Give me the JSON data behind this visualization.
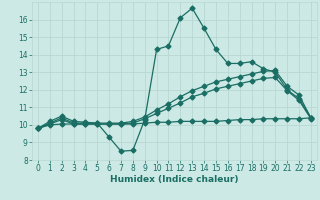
{
  "xlabel": "Humidex (Indice chaleur)",
  "xlim": [
    -0.5,
    23.5
  ],
  "ylim": [
    8,
    17
  ],
  "xticks": [
    0,
    1,
    2,
    3,
    4,
    5,
    6,
    7,
    8,
    9,
    10,
    11,
    12,
    13,
    14,
    15,
    16,
    17,
    18,
    19,
    20,
    21,
    22,
    23
  ],
  "yticks": [
    8,
    9,
    10,
    11,
    12,
    13,
    14,
    15,
    16
  ],
  "bg_color": "#cce9e5",
  "line_color": "#1a6e64",
  "grid_color": "#b8d8d4",
  "line1_x": [
    0,
    1,
    2,
    3,
    4,
    5,
    6,
    7,
    8,
    9,
    10,
    11,
    12,
    13,
    14,
    15,
    16,
    17,
    18,
    19,
    20,
    21,
    22,
    23
  ],
  "line1_y": [
    9.8,
    10.2,
    10.5,
    10.2,
    10.15,
    10.1,
    9.3,
    8.5,
    8.55,
    10.3,
    14.3,
    14.5,
    16.1,
    16.65,
    15.5,
    14.3,
    13.5,
    13.5,
    13.6,
    13.2,
    13.0,
    12.0,
    11.5,
    10.4
  ],
  "line2_x": [
    0,
    1,
    2,
    3,
    4,
    5,
    6,
    7,
    8,
    9,
    10,
    11,
    12,
    13,
    14,
    15,
    16,
    17,
    18,
    19,
    20,
    21,
    22,
    23
  ],
  "line2_y": [
    9.8,
    10.1,
    10.4,
    10.1,
    10.1,
    10.1,
    10.1,
    10.1,
    10.2,
    10.45,
    10.85,
    11.2,
    11.6,
    11.95,
    12.2,
    12.45,
    12.6,
    12.75,
    12.9,
    13.05,
    13.1,
    12.2,
    11.7,
    10.4
  ],
  "line3_x": [
    0,
    1,
    2,
    3,
    4,
    5,
    6,
    7,
    8,
    9,
    10,
    11,
    12,
    13,
    14,
    15,
    16,
    17,
    18,
    19,
    20,
    21,
    22,
    23
  ],
  "line3_y": [
    9.8,
    10.05,
    10.3,
    10.05,
    10.05,
    10.05,
    10.05,
    10.05,
    10.1,
    10.35,
    10.65,
    10.95,
    11.25,
    11.6,
    11.8,
    12.05,
    12.2,
    12.35,
    12.5,
    12.65,
    12.7,
    11.95,
    11.4,
    10.35
  ],
  "line4_x": [
    0,
    1,
    2,
    3,
    4,
    5,
    6,
    7,
    8,
    9,
    10,
    11,
    12,
    13,
    14,
    15,
    16,
    17,
    18,
    19,
    20,
    21,
    22,
    23
  ],
  "line4_y": [
    9.8,
    10.0,
    10.05,
    10.05,
    10.05,
    10.05,
    10.05,
    10.05,
    10.05,
    10.1,
    10.15,
    10.15,
    10.2,
    10.2,
    10.2,
    10.2,
    10.25,
    10.3,
    10.3,
    10.35,
    10.35,
    10.35,
    10.35,
    10.4
  ]
}
